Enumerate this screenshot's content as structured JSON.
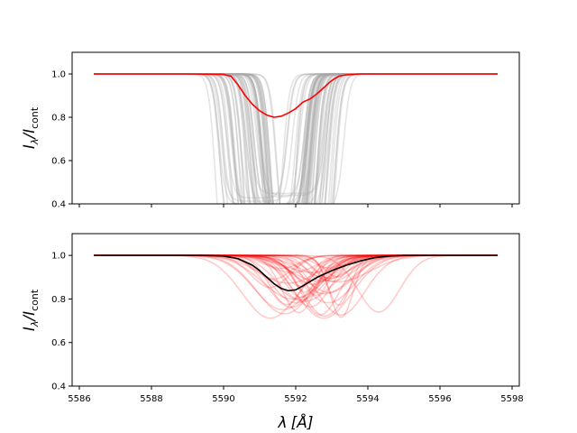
{
  "chart_data": [
    {
      "type": "line",
      "panel": "top",
      "ylabel": "I_λ/I_cont",
      "ylabel_parts": {
        "main": "I",
        "sub1": "λ",
        "slash": "/I",
        "sub2": "cont"
      },
      "xlim": [
        5585.8,
        5598.2
      ],
      "ylim": [
        0.4,
        1.1
      ],
      "yticks": [
        0.4,
        0.6,
        0.8,
        1.0
      ],
      "ytick_labels": [
        "0.4",
        "0.6",
        "0.8",
        "1.0"
      ],
      "xticks": [
        5586,
        5588,
        5590,
        5592,
        5594,
        5596,
        5598
      ],
      "xtick_labels_shown": false,
      "grid": false,
      "series": [
        {
          "role": "individual profiles",
          "color": "#a9a9a9",
          "opacity": 0.3,
          "count": 60,
          "shape": "box-like absorption, depth 0.55–0.95, width 1.0–2.6 Å, centred 5590.9–5592.2 Å"
        },
        {
          "role": "mean profile",
          "color": "#ff0000",
          "x": [
            5586.4,
            5589.0,
            5590.0,
            5590.2,
            5590.4,
            5590.6,
            5590.8,
            5591.0,
            5591.2,
            5591.4,
            5591.6,
            5591.8,
            5592.0,
            5592.2,
            5592.4,
            5592.6,
            5592.8,
            5593.0,
            5593.2,
            5593.4,
            5593.8,
            5597.6
          ],
          "y": [
            1.0,
            1.0,
            0.998,
            0.99,
            0.95,
            0.9,
            0.86,
            0.83,
            0.81,
            0.8,
            0.805,
            0.82,
            0.84,
            0.87,
            0.885,
            0.91,
            0.94,
            0.97,
            0.99,
            0.996,
            1.0,
            1.0
          ]
        }
      ]
    },
    {
      "type": "line",
      "panel": "bottom",
      "xlabel": "λ [Å]",
      "xlabel_parts": {
        "main": "λ",
        "unit": "[Å]"
      },
      "ylabel": "I_λ/I_cont",
      "ylabel_parts": {
        "main": "I",
        "sub1": "λ",
        "slash": "/I",
        "sub2": "cont"
      },
      "xlim": [
        5585.8,
        5598.2
      ],
      "ylim": [
        0.4,
        1.1
      ],
      "yticks": [
        0.4,
        0.6,
        0.8,
        1.0
      ],
      "ytick_labels": [
        "0.4",
        "0.6",
        "0.8",
        "1.0"
      ],
      "xticks": [
        5586,
        5588,
        5590,
        5592,
        5594,
        5596,
        5598
      ],
      "xtick_labels": [
        "5586",
        "5588",
        "5590",
        "5592",
        "5594",
        "5596",
        "5598"
      ],
      "grid": false,
      "series": [
        {
          "role": "individual profiles",
          "color": "#ff0000",
          "opacity": 0.2,
          "count": 40,
          "shape": "gaussian absorption, depth 0.05–0.29, sigma 0.3–0.9 Å, centred 5591.2–5594.3 Å"
        },
        {
          "role": "mean profile",
          "color": "#000000",
          "x": [
            5586.4,
            5589.5,
            5590.0,
            5590.4,
            5590.8,
            5591.0,
            5591.2,
            5591.4,
            5591.6,
            5591.8,
            5592.0,
            5592.2,
            5592.4,
            5592.6,
            5592.8,
            5593.0,
            5593.4,
            5593.8,
            5594.2,
            5594.6,
            5595.0,
            5597.6
          ],
          "y": [
            1.0,
            1.0,
            0.997,
            0.985,
            0.955,
            0.93,
            0.9,
            0.87,
            0.848,
            0.838,
            0.842,
            0.86,
            0.88,
            0.9,
            0.915,
            0.93,
            0.955,
            0.975,
            0.99,
            0.997,
            1.0,
            1.0
          ]
        }
      ]
    }
  ]
}
